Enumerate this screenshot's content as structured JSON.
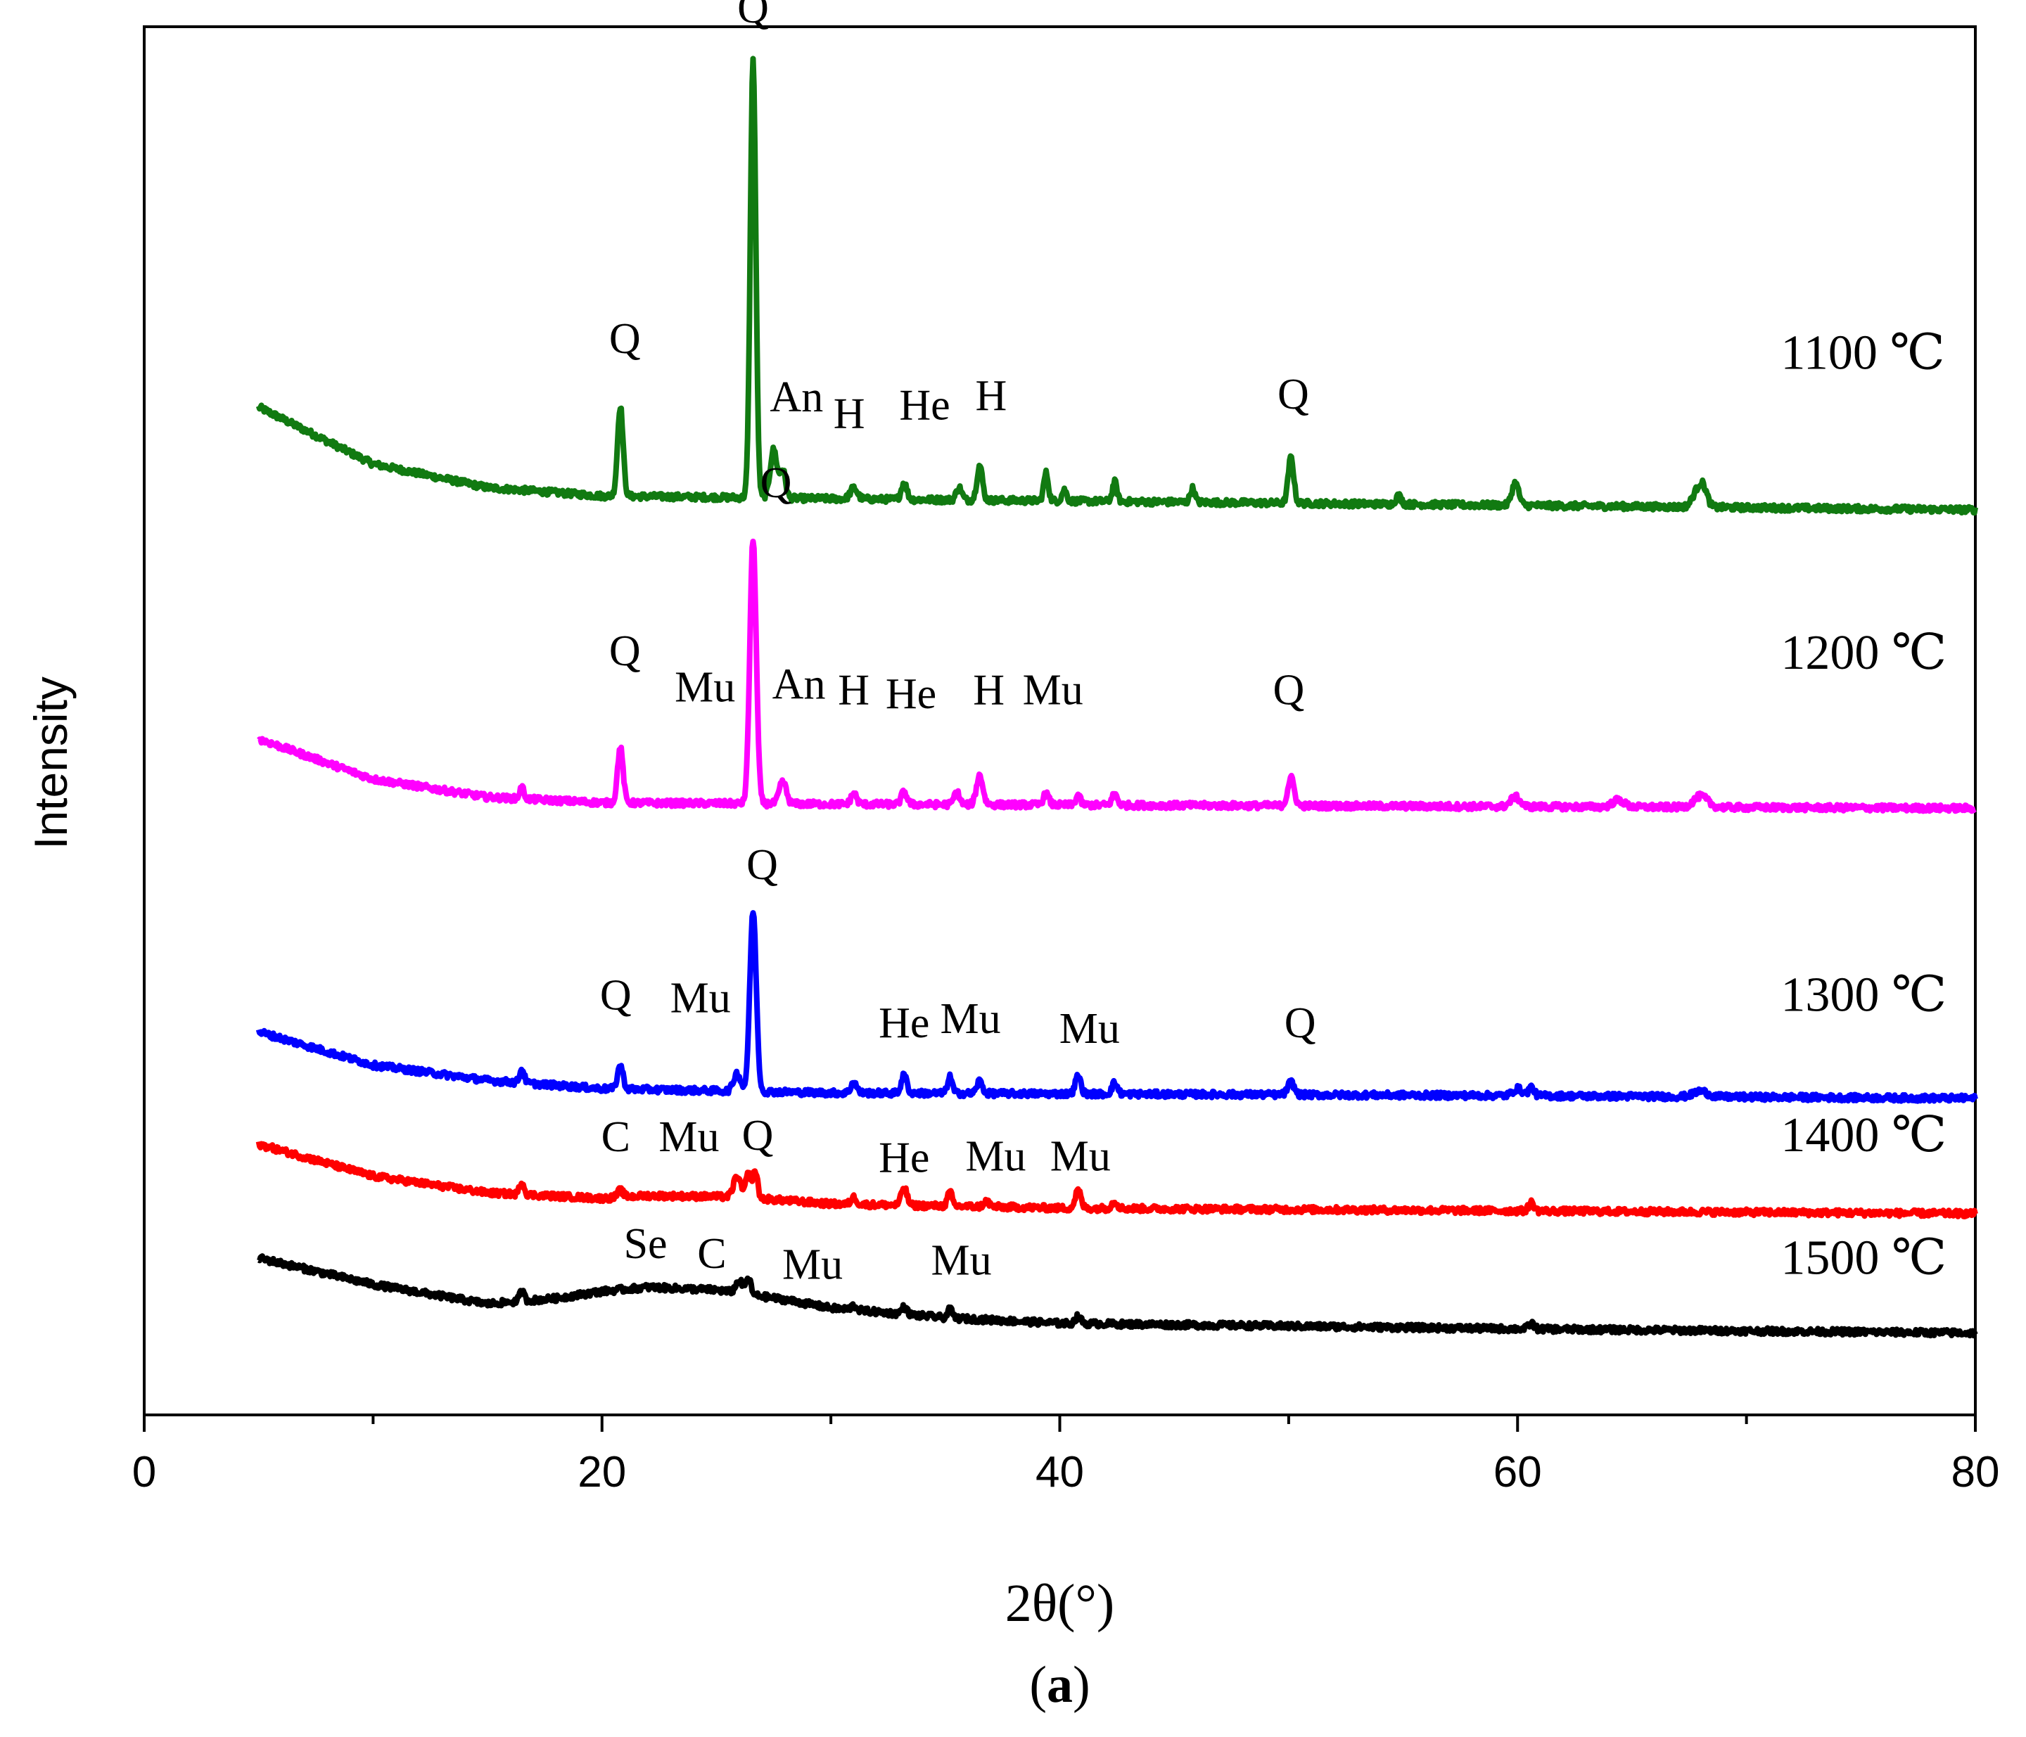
{
  "chart_data": {
    "type": "line",
    "title": "",
    "xlabel": "2θ(°)",
    "ylabel": "Intensity",
    "caption": {
      "prefix": "(",
      "letter": "a",
      "suffix": ")"
    },
    "xlim": [
      0,
      80
    ],
    "xticks": [
      0,
      20,
      40,
      60,
      80
    ],
    "xminor": [
      10,
      30,
      50,
      70
    ],
    "ylim": [
      0,
      100
    ],
    "grid": false,
    "series": [
      {
        "name": "1100 ℃",
        "color": "#117a11",
        "offset": 66,
        "baseline": [
          [
            5,
            6.6
          ],
          [
            10,
            2.5
          ],
          [
            15,
            0.8
          ],
          [
            20,
            0.2
          ],
          [
            30,
            0
          ],
          [
            80,
            -0.8
          ]
        ],
        "peaks": [
          [
            20.8,
            6.5,
            0.12
          ],
          [
            26.6,
            31.5,
            0.12
          ],
          [
            27.5,
            3.5,
            0.15
          ],
          [
            27.9,
            2.0,
            0.12
          ],
          [
            31,
            0.8,
            0.15
          ],
          [
            33.2,
            1.2,
            0.12
          ],
          [
            35.6,
            0.9,
            0.12
          ],
          [
            36.5,
            2.5,
            0.12
          ],
          [
            39.4,
            2.0,
            0.1
          ],
          [
            40.2,
            0.8,
            0.1
          ],
          [
            42.4,
            1.4,
            0.1
          ],
          [
            45.8,
            1.0,
            0.1
          ],
          [
            50.1,
            3.3,
            0.12
          ],
          [
            54.8,
            0.6,
            0.12
          ],
          [
            59.9,
            1.6,
            0.15
          ],
          [
            67.8,
            0.9,
            0.2
          ],
          [
            68.1,
            1.4,
            0.18
          ]
        ],
        "annotations": [
          {
            "text": "Q",
            "x": 26.6,
            "y": 100.3
          },
          {
            "text": "Q",
            "x": 21.0,
            "y": 76.5
          },
          {
            "text": "An",
            "x": 28.5,
            "y": 72.3
          },
          {
            "text": "H",
            "x": 30.8,
            "y": 71.1
          },
          {
            "text": "He",
            "x": 34.1,
            "y": 71.7
          },
          {
            "text": "H",
            "x": 37.0,
            "y": 72.4
          },
          {
            "text": "Q",
            "x": 50.2,
            "y": 72.5
          }
        ]
      },
      {
        "name": "1200 ℃",
        "color": "#ff00ff",
        "offset": 44,
        "baseline": [
          [
            5,
            4.7
          ],
          [
            10,
            1.8
          ],
          [
            15,
            0.5
          ],
          [
            20,
            0.1
          ],
          [
            30,
            0
          ],
          [
            80,
            -0.3
          ]
        ],
        "peaks": [
          [
            16.5,
            0.8,
            0.1
          ],
          [
            20.8,
            4.0,
            0.12
          ],
          [
            26.6,
            19.0,
            0.14
          ],
          [
            27.9,
            1.6,
            0.15
          ],
          [
            31,
            0.8,
            0.12
          ],
          [
            33.2,
            0.9,
            0.12
          ],
          [
            35.5,
            0.9,
            0.12
          ],
          [
            36.5,
            2.1,
            0.14
          ],
          [
            39.4,
            0.8,
            0.12
          ],
          [
            40.8,
            0.7,
            0.1
          ],
          [
            42.4,
            0.8,
            0.12
          ],
          [
            50.1,
            2.0,
            0.14
          ],
          [
            59.9,
            0.7,
            0.2
          ],
          [
            64.4,
            0.5,
            0.25
          ],
          [
            68.0,
            0.8,
            0.3
          ]
        ],
        "annotations": [
          {
            "text": "Q",
            "x": 27.6,
            "y": 66.1
          },
          {
            "text": "Q",
            "x": 21.0,
            "y": 54.0
          },
          {
            "text": "Mu",
            "x": 24.5,
            "y": 51.4
          },
          {
            "text": "An",
            "x": 28.6,
            "y": 51.6
          },
          {
            "text": "H",
            "x": 31.0,
            "y": 51.2
          },
          {
            "text": "He",
            "x": 33.5,
            "y": 50.9
          },
          {
            "text": "H",
            "x": 36.9,
            "y": 51.2
          },
          {
            "text": "Mu",
            "x": 39.7,
            "y": 51.2
          },
          {
            "text": "Q",
            "x": 50.0,
            "y": 51.2
          }
        ]
      },
      {
        "name": "1300 ℃",
        "color": "#0000ff",
        "offset": 23,
        "baseline": [
          [
            5,
            4.6
          ],
          [
            10,
            2.2
          ],
          [
            15,
            1.1
          ],
          [
            20,
            0.5
          ],
          [
            30,
            0.2
          ],
          [
            60,
            0
          ],
          [
            80,
            -0.2
          ]
        ],
        "peaks": [
          [
            16.5,
            1.0,
            0.1
          ],
          [
            20.8,
            1.7,
            0.12
          ],
          [
            25.9,
            1.3,
            0.15
          ],
          [
            26.6,
            13.0,
            0.14
          ],
          [
            31.0,
            0.8,
            0.12
          ],
          [
            33.2,
            1.3,
            0.12
          ],
          [
            35.2,
            1.2,
            0.1
          ],
          [
            36.5,
            0.9,
            0.12
          ],
          [
            40.8,
            1.3,
            0.12
          ],
          [
            42.4,
            0.8,
            0.12
          ],
          [
            50.1,
            0.9,
            0.14
          ],
          [
            60.0,
            0.5,
            0.2
          ],
          [
            60.6,
            0.6,
            0.12
          ],
          [
            68.0,
            0.4,
            0.3
          ]
        ],
        "annotations": [
          {
            "text": "Q",
            "x": 27.0,
            "y": 38.6
          },
          {
            "text": "Q",
            "x": 20.6,
            "y": 29.2
          },
          {
            "text": "Mu",
            "x": 24.3,
            "y": 29.0
          },
          {
            "text": "He",
            "x": 33.2,
            "y": 27.2
          },
          {
            "text": "Mu",
            "x": 36.1,
            "y": 27.5
          },
          {
            "text": "Mu",
            "x": 41.3,
            "y": 26.8
          },
          {
            "text": "Q",
            "x": 50.5,
            "y": 27.2
          }
        ]
      },
      {
        "name": "1400 ℃",
        "color": "#ff0000",
        "offset": 14.6,
        "baseline": [
          [
            5,
            4.9
          ],
          [
            10,
            2.6
          ],
          [
            15,
            1.4
          ],
          [
            20,
            1.0
          ],
          [
            22,
            1.2
          ],
          [
            26,
            1.1
          ],
          [
            30,
            0.6
          ],
          [
            40,
            0.3
          ],
          [
            60,
            0.1
          ],
          [
            80,
            -0.1
          ]
        ],
        "peaks": [
          [
            16.5,
            0.9,
            0.1
          ],
          [
            20.8,
            0.5,
            0.12
          ],
          [
            25.9,
            1.5,
            0.15
          ],
          [
            26.4,
            1.7,
            0.12
          ],
          [
            26.7,
            1.9,
            0.1
          ],
          [
            31.0,
            0.5,
            0.12
          ],
          [
            33.2,
            1.3,
            0.12
          ],
          [
            35.2,
            1.0,
            0.1
          ],
          [
            36.8,
            0.4,
            0.12
          ],
          [
            40.8,
            1.3,
            0.12
          ],
          [
            42.4,
            0.5,
            0.12
          ],
          [
            60.6,
            0.6,
            0.12
          ]
        ],
        "annotations": [
          {
            "text": "Q",
            "x": 26.8,
            "y": 19.1
          },
          {
            "text": "C",
            "x": 20.6,
            "y": 19.0
          },
          {
            "text": "Mu",
            "x": 23.8,
            "y": 19.0
          },
          {
            "text": "He",
            "x": 33.2,
            "y": 17.5
          },
          {
            "text": "Mu",
            "x": 37.2,
            "y": 17.6
          },
          {
            "text": "Mu",
            "x": 40.9,
            "y": 17.6
          }
        ]
      },
      {
        "name": "1500 ℃",
        "color": "#000000",
        "offset": 6,
        "baseline": [
          [
            5,
            5.3
          ],
          [
            10,
            3.4
          ],
          [
            15,
            2.0
          ],
          [
            18,
            2.4
          ],
          [
            20,
            2.9
          ],
          [
            22,
            3.2
          ],
          [
            25,
            3.0
          ],
          [
            28,
            2.3
          ],
          [
            30,
            1.7
          ],
          [
            35,
            1.0
          ],
          [
            40,
            0.6
          ],
          [
            60,
            0.2
          ],
          [
            80,
            -0.1
          ]
        ],
        "peaks": [
          [
            16.5,
            0.7,
            0.1
          ],
          [
            26.0,
            0.9,
            0.15
          ],
          [
            26.4,
            1.2,
            0.1
          ],
          [
            31.0,
            0.3,
            0.12
          ],
          [
            33.2,
            0.5,
            0.12
          ],
          [
            35.2,
            0.6,
            0.1
          ],
          [
            40.8,
            0.5,
            0.12
          ],
          [
            60.6,
            0.4,
            0.12
          ]
        ],
        "annotations": [
          {
            "text": "Se",
            "x": 21.9,
            "y": 11.3
          },
          {
            "text": "C",
            "x": 24.8,
            "y": 10.6
          },
          {
            "text": "Mu",
            "x": 29.2,
            "y": 9.8
          },
          {
            "text": "Mu",
            "x": 35.7,
            "y": 10.1
          }
        ]
      }
    ],
    "series_label_x": 71.5
  }
}
